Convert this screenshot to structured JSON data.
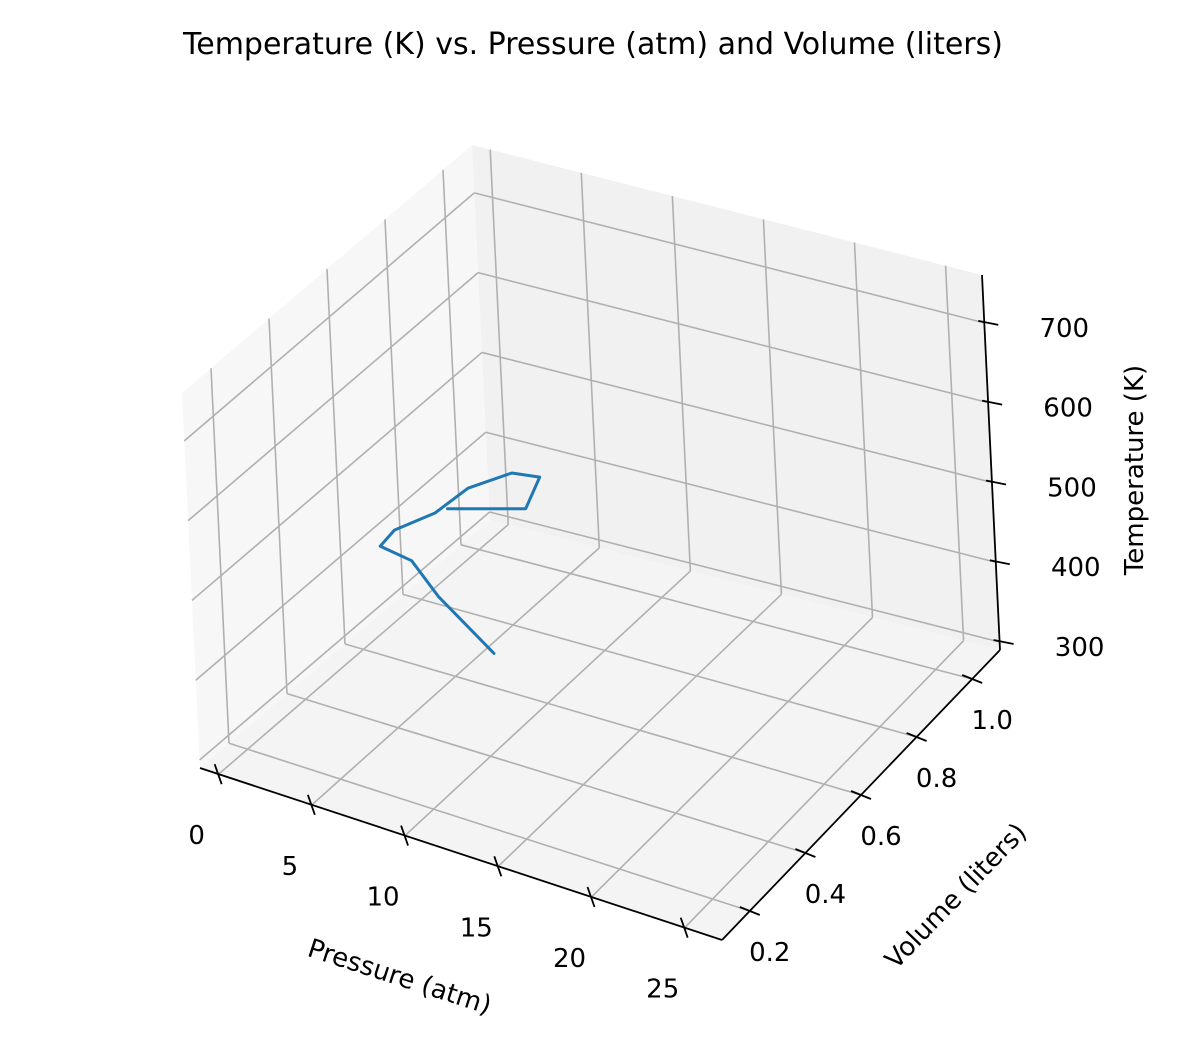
{
  "chart_data": {
    "type": "line",
    "projection": "3d",
    "title": "Temperature (K) vs. Pressure (atm) and Volume (liters)",
    "xlabel": "Pressure (atm)",
    "ylabel": "Volume (liters)",
    "zlabel": "Temperature (K)",
    "xlim": [
      -1,
      27
    ],
    "ylim": [
      0.1,
      1.1
    ],
    "zlim": [
      290,
      760
    ],
    "xticks": [
      0,
      5,
      10,
      15,
      20,
      25
    ],
    "yticks": [
      0.2,
      0.4,
      0.6,
      0.8,
      1.0
    ],
    "zticks": [
      300,
      400,
      500,
      600,
      700
    ],
    "xtick_labels": [
      "0",
      "5",
      "10",
      "15",
      "20",
      "25"
    ],
    "ytick_labels": [
      "0.2",
      "0.4",
      "0.6",
      "0.8",
      "1.0"
    ],
    "ztick_labels": [
      "300",
      "400",
      "500",
      "600",
      "700"
    ],
    "grid": true,
    "series": [
      {
        "color": "#1f77b4",
        "points": [
          {
            "x": 5.0,
            "y": 0.6,
            "z": 500
          },
          {
            "x": 7.0,
            "y": 0.74,
            "z": 468
          },
          {
            "x": 6.2,
            "y": 0.84,
            "z": 470
          },
          {
            "x": 5.0,
            "y": 0.82,
            "z": 474
          },
          {
            "x": 4.2,
            "y": 0.72,
            "z": 482
          },
          {
            "x": 4.3,
            "y": 0.6,
            "z": 490
          },
          {
            "x": 4.0,
            "y": 0.48,
            "z": 505
          },
          {
            "x": 4.5,
            "y": 0.4,
            "z": 514
          },
          {
            "x": 7.0,
            "y": 0.35,
            "z": 530
          },
          {
            "x": 10.0,
            "y": 0.25,
            "z": 540
          },
          {
            "x": 15.0,
            "y": 0.12,
            "z": 550
          }
        ]
      }
    ]
  }
}
